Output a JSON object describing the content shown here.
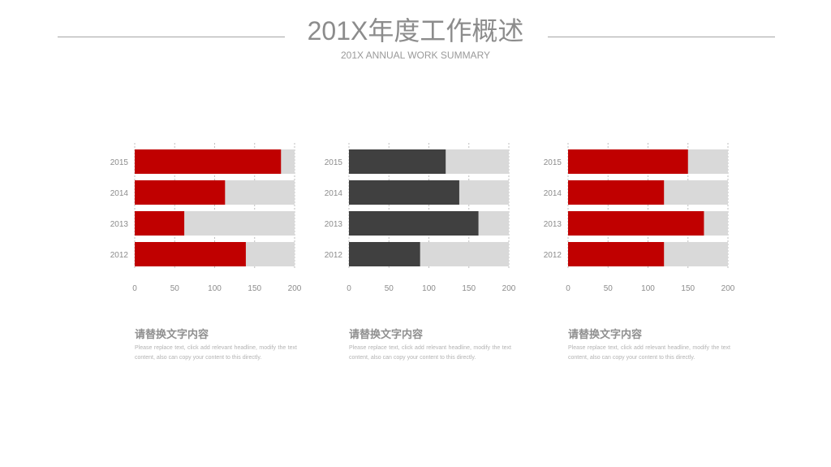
{
  "header": {
    "title": "201X年度工作概述",
    "subtitle": "201X ANNUAL  WORK SUMMARY"
  },
  "colors": {
    "red": "#c00000",
    "dark": "#404040",
    "track": "#d9d9d9",
    "axis_text": "#8c8c8c"
  },
  "chart_data": [
    {
      "type": "bar",
      "orientation": "horizontal",
      "categories": [
        "2015",
        "2014",
        "2013",
        "2012"
      ],
      "values": [
        183,
        113,
        62,
        139
      ],
      "background_values": [
        200,
        200,
        200,
        200
      ],
      "xlim": [
        0,
        200
      ],
      "xticks": [
        0,
        50,
        100,
        150,
        200
      ],
      "bar_color": "#c00000",
      "grid": true
    },
    {
      "type": "bar",
      "orientation": "horizontal",
      "categories": [
        "2015",
        "2014",
        "2013",
        "2012"
      ],
      "values": [
        121,
        138,
        162,
        89
      ],
      "background_values": [
        200,
        200,
        200,
        200
      ],
      "xlim": [
        0,
        200
      ],
      "xticks": [
        0,
        50,
        100,
        150,
        200
      ],
      "bar_color": "#404040",
      "grid": true
    },
    {
      "type": "bar",
      "orientation": "horizontal",
      "categories": [
        "2015",
        "2014",
        "2013",
        "2012"
      ],
      "values": [
        150,
        120,
        170,
        120
      ],
      "background_values": [
        200,
        200,
        200,
        200
      ],
      "xlim": [
        0,
        200
      ],
      "xticks": [
        0,
        50,
        100,
        150,
        200
      ],
      "bar_color": "#c00000",
      "grid": true
    }
  ],
  "captions": [
    {
      "title": "请替换文字内容",
      "text": "Please replace text, click add relevant headline, modify the text content, also can copy your content to this directly."
    },
    {
      "title": "请替换文字内容",
      "text": "Please replace text, click add relevant headline, modify the text content, also can copy your content to this directly."
    },
    {
      "title": "请替换文字内容",
      "text": "Please replace text, click add relevant headline, modify the text content, also can copy your content to this directly."
    }
  ]
}
